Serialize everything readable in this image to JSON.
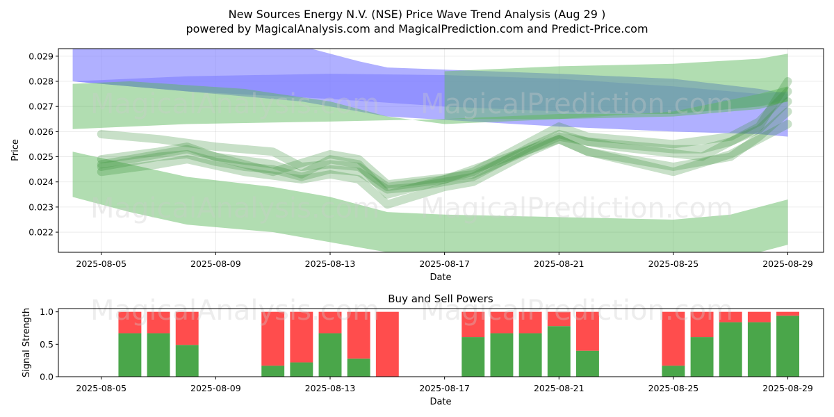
{
  "title_line1": "New Sources Energy N.V. (NSE) Price Wave Trend Analysis (Aug 29 )",
  "title_line2": "powered by MagicalAnalysis.com and MagicalPrediction.com and Predict-Price.com",
  "watermarks": [
    "MagicalAnalysis.com",
    "MagicalPrediction.com"
  ],
  "colors": {
    "buy": "#4aa64a",
    "sell": "#ff4d4d",
    "blue_band": "#8080ff",
    "green_band": "#5cb85c",
    "wave": "#3a8f3a"
  },
  "chart_data": [
    {
      "type": "area",
      "title": "",
      "xlabel": "Date",
      "ylabel": "Price",
      "xlim": [
        "2025-08-03T12:00",
        "2025-08-30T06:00"
      ],
      "ylim": [
        0.0212,
        0.0293
      ],
      "x_ticks": [
        "2025-08-05",
        "2025-08-09",
        "2025-08-13",
        "2025-08-17",
        "2025-08-21",
        "2025-08-25",
        "2025-08-29"
      ],
      "y_ticks": [
        "0.022",
        "0.023",
        "0.024",
        "0.025",
        "0.026",
        "0.027",
        "0.028",
        "0.029"
      ],
      "grid": true,
      "bands": [
        {
          "color": "blue",
          "upper": [
            [
              "2025-08-04",
              0.03
            ],
            [
              "2025-08-08",
              0.0298
            ],
            [
              "2025-08-12",
              0.0294
            ],
            [
              "2025-08-14",
              0.0288
            ],
            [
              "2025-08-15",
              0.02855
            ],
            [
              "2025-08-21",
              0.0283
            ],
            [
              "2025-08-25",
              0.0281
            ],
            [
              "2025-08-28",
              0.0277
            ],
            [
              "2025-08-29",
              0.0275
            ]
          ],
          "lower": [
            [
              "2025-08-04",
              0.028
            ],
            [
              "2025-08-08",
              0.0276
            ],
            [
              "2025-08-12",
              0.0272
            ],
            [
              "2025-08-14",
              0.0268
            ],
            [
              "2025-08-15",
              0.0266
            ],
            [
              "2025-08-21",
              0.0262
            ],
            [
              "2025-08-25",
              0.026
            ],
            [
              "2025-08-28",
              0.0259
            ],
            [
              "2025-08-29",
              0.0258
            ]
          ]
        },
        {
          "color": "blue",
          "upper": [
            [
              "2025-08-04",
              0.028
            ],
            [
              "2025-08-08",
              0.0282
            ],
            [
              "2025-08-13",
              0.0283
            ],
            [
              "2025-08-17",
              0.02825
            ],
            [
              "2025-08-21",
              0.0281
            ],
            [
              "2025-08-25",
              0.0278
            ],
            [
              "2025-08-28",
              0.0275
            ],
            [
              "2025-08-29",
              0.0276
            ]
          ],
          "lower": [
            [
              "2025-08-04",
              0.028
            ],
            [
              "2025-08-08",
              0.0276
            ],
            [
              "2025-08-13",
              0.0273
            ],
            [
              "2025-08-17",
              0.027
            ],
            [
              "2025-08-21",
              0.0268
            ],
            [
              "2025-08-25",
              0.0267
            ],
            [
              "2025-08-28",
              0.027
            ],
            [
              "2025-08-29",
              0.0273
            ]
          ]
        },
        {
          "color": "green",
          "upper": [
            [
              "2025-08-04",
              0.0279
            ],
            [
              "2025-08-06",
              0.028
            ],
            [
              "2025-08-10",
              0.0277
            ],
            [
              "2025-08-13",
              0.0272
            ],
            [
              "2025-08-15",
              0.0266
            ],
            [
              "2025-08-17",
              0.0263
            ],
            [
              "2025-08-21",
              0.0265
            ],
            [
              "2025-08-25",
              0.0268
            ],
            [
              "2025-08-28",
              0.0275
            ],
            [
              "2025-08-29",
              0.0278
            ]
          ],
          "lower": [
            [
              "2025-08-04",
              0.0261
            ],
            [
              "2025-08-08",
              0.0263
            ],
            [
              "2025-08-13",
              0.0264
            ],
            [
              "2025-08-17",
              0.0265
            ],
            [
              "2025-08-21",
              0.0267
            ],
            [
              "2025-08-25",
              0.0267
            ],
            [
              "2025-08-28",
              0.027
            ],
            [
              "2025-08-29",
              0.0272
            ]
          ]
        },
        {
          "color": "green",
          "upper": [
            [
              "2025-08-17",
              0.0284
            ],
            [
              "2025-08-21",
              0.0286
            ],
            [
              "2025-08-25",
              0.0287
            ],
            [
              "2025-08-28",
              0.0289
            ],
            [
              "2025-08-29",
              0.0291
            ]
          ],
          "lower": [
            [
              "2025-08-17",
              0.0265
            ],
            [
              "2025-08-21",
              0.0265
            ],
            [
              "2025-08-25",
              0.0266
            ],
            [
              "2025-08-28",
              0.0269
            ],
            [
              "2025-08-29",
              0.0272
            ]
          ]
        },
        {
          "color": "green",
          "upper": [
            [
              "2025-08-04",
              0.0252
            ],
            [
              "2025-08-06",
              0.0247
            ],
            [
              "2025-08-08",
              0.0242
            ],
            [
              "2025-08-11",
              0.0238
            ],
            [
              "2025-08-13",
              0.0234
            ],
            [
              "2025-08-15",
              0.0228
            ],
            [
              "2025-08-17",
              0.0227
            ],
            [
              "2025-08-21",
              0.0226
            ],
            [
              "2025-08-25",
              0.0225
            ],
            [
              "2025-08-27",
              0.0227
            ],
            [
              "2025-08-29",
              0.0233
            ]
          ],
          "lower": [
            [
              "2025-08-04",
              0.0234
            ],
            [
              "2025-08-06",
              0.0228
            ],
            [
              "2025-08-08",
              0.0223
            ],
            [
              "2025-08-11",
              0.022
            ],
            [
              "2025-08-13",
              0.0216
            ],
            [
              "2025-08-15",
              0.0212
            ],
            [
              "2025-08-17",
              0.0212
            ],
            [
              "2025-08-21",
              0.0212
            ],
            [
              "2025-08-25",
              0.0212
            ],
            [
              "2025-08-28",
              0.0212
            ],
            [
              "2025-08-29",
              0.0215
            ]
          ]
        }
      ],
      "waves": [
        [
          [
            "2025-08-05",
            0.0246
          ],
          [
            "2025-08-06",
            0.0248
          ],
          [
            "2025-08-07",
            0.025
          ],
          [
            "2025-08-08",
            0.0251
          ],
          [
            "2025-08-09",
            0.0248
          ],
          [
            "2025-08-10",
            0.0246
          ],
          [
            "2025-08-11",
            0.0245
          ],
          [
            "2025-08-12",
            0.0242
          ],
          [
            "2025-08-13",
            0.0245
          ],
          [
            "2025-08-14",
            0.0244
          ],
          [
            "2025-08-15",
            0.0237
          ],
          [
            "2025-08-16",
            0.0238
          ],
          [
            "2025-08-17",
            0.024
          ],
          [
            "2025-08-18",
            0.0242
          ],
          [
            "2025-08-19",
            0.0248
          ],
          [
            "2025-08-20",
            0.0254
          ],
          [
            "2025-08-21",
            0.0259
          ],
          [
            "2025-08-22",
            0.0256
          ],
          [
            "2025-08-23",
            0.0255
          ],
          [
            "2025-08-24",
            0.0254
          ],
          [
            "2025-08-25",
            0.0253
          ],
          [
            "2025-08-26",
            0.0253
          ],
          [
            "2025-08-27",
            0.0256
          ],
          [
            "2025-08-28",
            0.0261
          ],
          [
            "2025-08-29",
            0.0272
          ]
        ],
        [
          [
            "2025-08-05",
            0.0249
          ],
          [
            "2025-08-07",
            0.0252
          ],
          [
            "2025-08-08",
            0.0254
          ],
          [
            "2025-08-09",
            0.025
          ],
          [
            "2025-08-11",
            0.0247
          ],
          [
            "2025-08-12",
            0.0243
          ],
          [
            "2025-08-13",
            0.0249
          ],
          [
            "2025-08-14",
            0.0247
          ],
          [
            "2025-08-15",
            0.0235
          ],
          [
            "2025-08-17",
            0.0241
          ],
          [
            "2025-08-18",
            0.0244
          ],
          [
            "2025-08-20",
            0.0256
          ],
          [
            "2025-08-21",
            0.0262
          ],
          [
            "2025-08-22",
            0.0258
          ],
          [
            "2025-08-25",
            0.0255
          ],
          [
            "2025-08-27",
            0.0258
          ],
          [
            "2025-08-28",
            0.0264
          ],
          [
            "2025-08-29",
            0.0276
          ]
        ],
        [
          [
            "2025-08-05",
            0.0244
          ],
          [
            "2025-08-07",
            0.0247
          ],
          [
            "2025-08-08",
            0.0249
          ],
          [
            "2025-08-10",
            0.0244
          ],
          [
            "2025-08-12",
            0.0241
          ],
          [
            "2025-08-13",
            0.0243
          ],
          [
            "2025-08-14",
            0.0241
          ],
          [
            "2025-08-15",
            0.0231
          ],
          [
            "2025-08-17",
            0.0238
          ],
          [
            "2025-08-18",
            0.024
          ],
          [
            "2025-08-20",
            0.0252
          ],
          [
            "2025-08-21",
            0.0257
          ],
          [
            "2025-08-22",
            0.0252
          ],
          [
            "2025-08-25",
            0.0246
          ],
          [
            "2025-08-27",
            0.025
          ],
          [
            "2025-08-28",
            0.0258
          ],
          [
            "2025-08-29",
            0.0268
          ]
        ],
        [
          [
            "2025-08-05",
            0.0259
          ],
          [
            "2025-08-07",
            0.0257
          ],
          [
            "2025-08-09",
            0.0254
          ],
          [
            "2025-08-11",
            0.0252
          ],
          [
            "2025-08-12",
            0.0246
          ],
          [
            "2025-08-13",
            0.0247
          ],
          [
            "2025-08-14",
            0.0246
          ],
          [
            "2025-08-15",
            0.0238
          ],
          [
            "2025-08-17",
            0.0241
          ],
          [
            "2025-08-19",
            0.0249
          ],
          [
            "2025-08-21",
            0.0257
          ],
          [
            "2025-08-22",
            0.0252
          ],
          [
            "2025-08-25",
            0.0244
          ],
          [
            "2025-08-27",
            0.0251
          ],
          [
            "2025-08-28",
            0.0257
          ],
          [
            "2025-08-29",
            0.0263
          ]
        ],
        [
          [
            "2025-08-05",
            0.0247
          ],
          [
            "2025-08-08",
            0.0253
          ],
          [
            "2025-08-11",
            0.0244
          ],
          [
            "2025-08-13",
            0.0251
          ],
          [
            "2025-08-14",
            0.0249
          ],
          [
            "2025-08-15",
            0.0239
          ],
          [
            "2025-08-18",
            0.0243
          ],
          [
            "2025-08-21",
            0.0258
          ],
          [
            "2025-08-23",
            0.0254
          ],
          [
            "2025-08-26",
            0.025
          ],
          [
            "2025-08-28",
            0.0262
          ],
          [
            "2025-08-29",
            0.028
          ]
        ]
      ]
    },
    {
      "type": "bar",
      "title": "Buy and Sell Powers",
      "xlabel": "Date",
      "ylabel": "Signal Strength",
      "ylim": [
        0,
        1.05
      ],
      "x_ticks": [
        "2025-08-05",
        "2025-08-09",
        "2025-08-13",
        "2025-08-17",
        "2025-08-21",
        "2025-08-25",
        "2025-08-29"
      ],
      "y_ticks": [
        "0.0",
        "0.5",
        "1.0"
      ],
      "categories": [
        "2025-08-06",
        "2025-08-07",
        "2025-08-08",
        "2025-08-11",
        "2025-08-12",
        "2025-08-13",
        "2025-08-14",
        "2025-08-15",
        "2025-08-18",
        "2025-08-19",
        "2025-08-20",
        "2025-08-21",
        "2025-08-22",
        "2025-08-25",
        "2025-08-26",
        "2025-08-27",
        "2025-08-28",
        "2025-08-29"
      ],
      "series": [
        {
          "values": [
            0.67,
            0.67,
            0.49,
            0.17,
            0.22,
            0.67,
            0.28,
            0.0,
            0.61,
            0.67,
            0.67,
            0.78,
            0.4,
            0.17,
            0.61,
            0.84,
            0.84,
            0.94
          ]
        },
        {
          "values": [
            0.33,
            0.33,
            0.51,
            0.83,
            0.78,
            0.33,
            0.72,
            1.0,
            0.39,
            0.33,
            0.33,
            0.22,
            0.6,
            0.83,
            0.39,
            0.16,
            0.16,
            0.06
          ]
        }
      ]
    }
  ]
}
